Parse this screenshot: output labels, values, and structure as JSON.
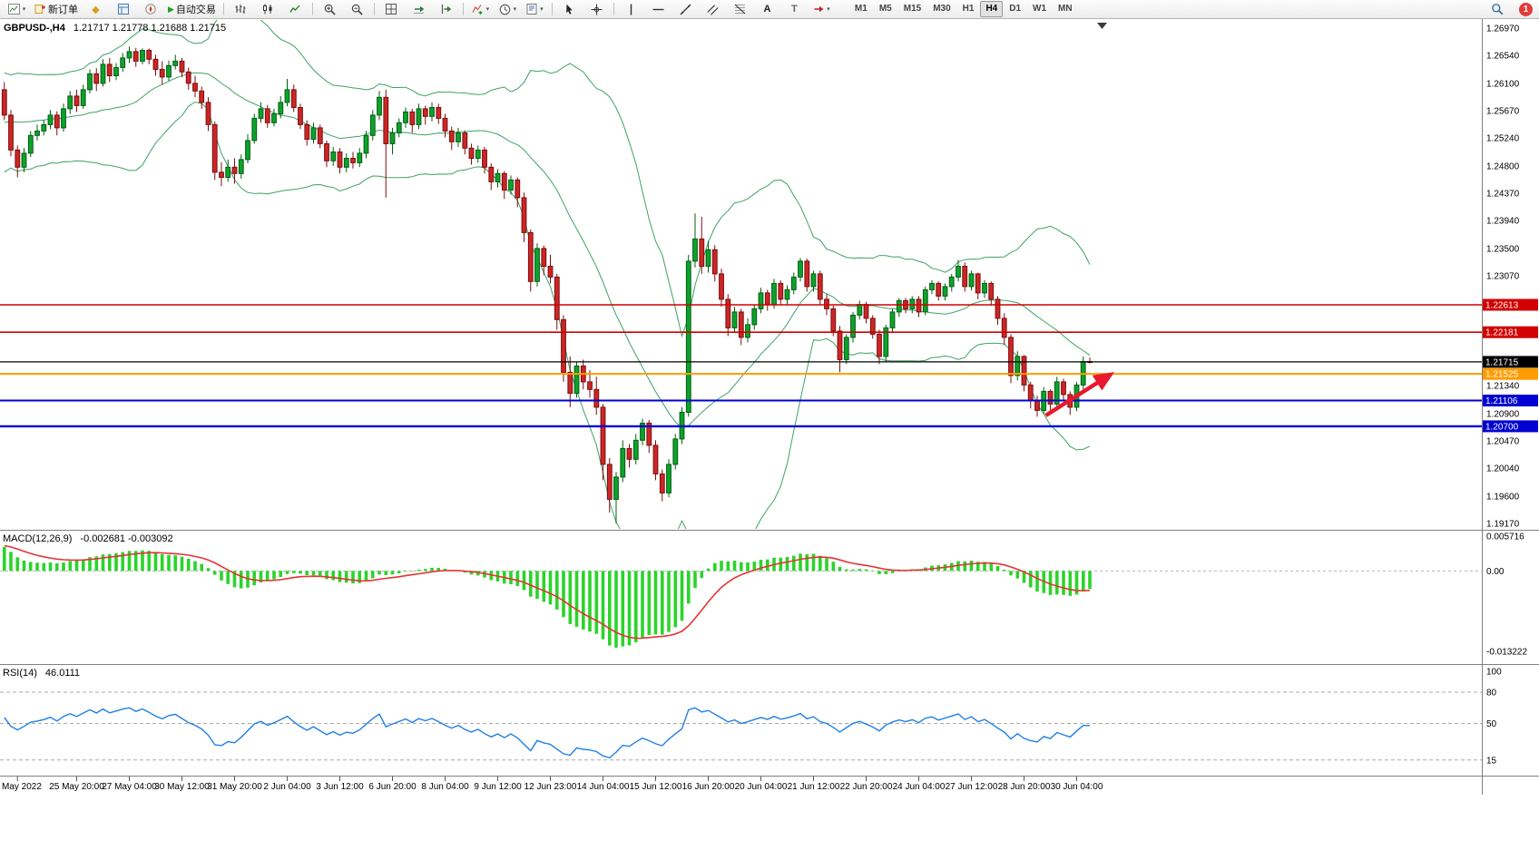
{
  "toolbar": {
    "items": [
      {
        "name": "new-chart",
        "dropdown": true
      },
      {
        "name": "new-order",
        "label": "新订单"
      },
      {
        "name": "metaeditor"
      },
      {
        "name": "market-watch"
      },
      {
        "name": "navigator"
      },
      {
        "name": "autotrading",
        "label": "自动交易"
      },
      {
        "sep": true
      },
      {
        "name": "bars-chart"
      },
      {
        "name": "candlestick-chart"
      },
      {
        "name": "line-chart"
      },
      {
        "sep": true
      },
      {
        "name": "zoom-in"
      },
      {
        "name": "zoom-out"
      },
      {
        "sep": true
      },
      {
        "name": "tile-windows"
      },
      {
        "name": "auto-scroll"
      },
      {
        "name": "chart-shift"
      },
      {
        "sep": true
      },
      {
        "name": "indicators",
        "dropdown": true
      },
      {
        "name": "periods",
        "dropdown": true
      },
      {
        "name": "templates",
        "dropdown": true
      },
      {
        "sep": true
      },
      {
        "name": "cursor"
      },
      {
        "name": "crosshair"
      },
      {
        "sep": true
      },
      {
        "name": "vertical-line"
      },
      {
        "name": "horizontal-line"
      },
      {
        "name": "trendline"
      },
      {
        "name": "equidistant-channel"
      },
      {
        "name": "fibonacci"
      },
      {
        "name": "text"
      },
      {
        "name": "text-label"
      },
      {
        "name": "arrows",
        "dropdown": true
      }
    ],
    "timeframes": [
      "M1",
      "M5",
      "M15",
      "M30",
      "H1",
      "H4",
      "D1",
      "W1",
      "MN"
    ],
    "active_timeframe": "H4",
    "notification_count": "1"
  },
  "chart_data": {
    "type": "candlestick",
    "symbol": "GBPUSD-",
    "period": "H4",
    "title": "GBPUSD-,H4",
    "ohlc_text": "1.21717 1.21778 1.21688 1.21715",
    "price_unit": 0.0001,
    "candles": [
      [
        12600,
        12612,
        12552,
        12560
      ],
      [
        12560,
        12568,
        12495,
        12505
      ],
      [
        12505,
        12512,
        12462,
        12478
      ],
      [
        12478,
        12508,
        12470,
        12500
      ],
      [
        12500,
        12535,
        12494,
        12528
      ],
      [
        12528,
        12545,
        12520,
        12535
      ],
      [
        12535,
        12552,
        12528,
        12545
      ],
      [
        12545,
        12568,
        12538,
        12560
      ],
      [
        12560,
        12566,
        12528,
        12540
      ],
      [
        12540,
        12578,
        12534,
        12570
      ],
      [
        12570,
        12598,
        12562,
        12590
      ],
      [
        12590,
        12600,
        12565,
        12575
      ],
      [
        12575,
        12608,
        12570,
        12600
      ],
      [
        12600,
        12632,
        12594,
        12625
      ],
      [
        12625,
        12634,
        12598,
        12610
      ],
      [
        12610,
        12648,
        12605,
        12640
      ],
      [
        12640,
        12650,
        12612,
        12622
      ],
      [
        12622,
        12642,
        12615,
        12635
      ],
      [
        12635,
        12658,
        12628,
        12650
      ],
      [
        12650,
        12668,
        12642,
        12660
      ],
      [
        12660,
        12666,
        12636,
        12645
      ],
      [
        12645,
        12665,
        12640,
        12662
      ],
      [
        12662,
        12665,
        12640,
        12648
      ],
      [
        12648,
        12655,
        12622,
        12632
      ],
      [
        12632,
        12645,
        12608,
        12620
      ],
      [
        12620,
        12646,
        12614,
        12638
      ],
      [
        12638,
        12655,
        12632,
        12645
      ],
      [
        12645,
        12650,
        12620,
        12628
      ],
      [
        12628,
        12635,
        12600,
        12610
      ],
      [
        12610,
        12622,
        12588,
        12598
      ],
      [
        12598,
        12605,
        12570,
        12580
      ],
      [
        12580,
        12588,
        12535,
        12545
      ],
      [
        12545,
        12550,
        12458,
        12470
      ],
      [
        12470,
        12486,
        12448,
        12462
      ],
      [
        12462,
        12490,
        12455,
        12478
      ],
      [
        12478,
        12492,
        12452,
        12468
      ],
      [
        12468,
        12498,
        12460,
        12490
      ],
      [
        12490,
        12530,
        12484,
        12520
      ],
      [
        12520,
        12562,
        12515,
        12555
      ],
      [
        12555,
        12580,
        12548,
        12570
      ],
      [
        12570,
        12576,
        12540,
        12548
      ],
      [
        12548,
        12570,
        12542,
        12562
      ],
      [
        12562,
        12590,
        12555,
        12580
      ],
      [
        12580,
        12617,
        12574,
        12600
      ],
      [
        12600,
        12608,
        12565,
        12572
      ],
      [
        12572,
        12578,
        12538,
        12545
      ],
      [
        12545,
        12552,
        12512,
        12522
      ],
      [
        12522,
        12548,
        12515,
        12540
      ],
      [
        12540,
        12545,
        12508,
        12515
      ],
      [
        12515,
        12520,
        12478,
        12488
      ],
      [
        12488,
        12510,
        12480,
        12502
      ],
      [
        12502,
        12508,
        12468,
        12478
      ],
      [
        12478,
        12500,
        12470,
        12492
      ],
      [
        12492,
        12502,
        12476,
        12485
      ],
      [
        12485,
        12508,
        12478,
        12500
      ],
      [
        12500,
        12535,
        12492,
        12528
      ],
      [
        12528,
        12568,
        12520,
        12560
      ],
      [
        12560,
        12598,
        12552,
        12588
      ],
      [
        12588,
        12600,
        12430,
        12515
      ],
      [
        12515,
        12540,
        12498,
        12532
      ],
      [
        12532,
        12555,
        12525,
        12548
      ],
      [
        12548,
        12572,
        12540,
        12565
      ],
      [
        12565,
        12570,
        12532,
        12545
      ],
      [
        12545,
        12578,
        12538,
        12570
      ],
      [
        12570,
        12575,
        12545,
        12558
      ],
      [
        12558,
        12580,
        12550,
        12572
      ],
      [
        12572,
        12578,
        12546,
        12555
      ],
      [
        12555,
        12562,
        12525,
        12535
      ],
      [
        12535,
        12542,
        12505,
        12518
      ],
      [
        12518,
        12540,
        12510,
        12532
      ],
      [
        12532,
        12536,
        12498,
        12508
      ],
      [
        12508,
        12515,
        12482,
        12492
      ],
      [
        12492,
        12512,
        12485,
        12505
      ],
      [
        12505,
        12510,
        12468,
        12478
      ],
      [
        12478,
        12484,
        12442,
        12455
      ],
      [
        12455,
        12475,
        12446,
        12468
      ],
      [
        12468,
        12472,
        12428,
        12442
      ],
      [
        12442,
        12465,
        12435,
        12458
      ],
      [
        12458,
        12462,
        12415,
        12430
      ],
      [
        12430,
        12438,
        12360,
        12375
      ],
      [
        12375,
        12380,
        12282,
        12298
      ],
      [
        12298,
        12358,
        12290,
        12350
      ],
      [
        12350,
        12355,
        12308,
        12322
      ],
      [
        12322,
        12340,
        12295,
        12305
      ],
      [
        12305,
        12310,
        12222,
        12238
      ],
      [
        12238,
        12245,
        12140,
        12155
      ],
      [
        12155,
        12180,
        12100,
        12122
      ],
      [
        12122,
        12172,
        12115,
        12165
      ],
      [
        12165,
        12175,
        12128,
        12140
      ],
      [
        12140,
        12158,
        12115,
        12128
      ],
      [
        12128,
        12148,
        12088,
        12100
      ],
      [
        12100,
        12105,
        11985,
        12010
      ],
      [
        12010,
        12020,
        11934,
        11955
      ],
      [
        11955,
        11998,
        11917,
        11990
      ],
      [
        11990,
        12048,
        11982,
        12035
      ],
      [
        12035,
        12042,
        12005,
        12018
      ],
      [
        12018,
        12058,
        12010,
        12048
      ],
      [
        12048,
        12082,
        12040,
        12075
      ],
      [
        12075,
        12080,
        12028,
        12040
      ],
      [
        12040,
        12048,
        11985,
        11995
      ],
      [
        11995,
        12002,
        11952,
        11965
      ],
      [
        11965,
        12018,
        11958,
        12010
      ],
      [
        12010,
        12058,
        12002,
        12050
      ],
      [
        12050,
        12100,
        12042,
        12092
      ],
      [
        12092,
        12340,
        12085,
        12330
      ],
      [
        12330,
        12405,
        12320,
        12365
      ],
      [
        12365,
        12400,
        12310,
        12322
      ],
      [
        12322,
        12362,
        12312,
        12348
      ],
      [
        12348,
        12355,
        12298,
        12310
      ],
      [
        12310,
        12318,
        12258,
        12270
      ],
      [
        12270,
        12278,
        12212,
        12225
      ],
      [
        12225,
        12258,
        12218,
        12250
      ],
      [
        12250,
        12255,
        12198,
        12210
      ],
      [
        12210,
        12240,
        12202,
        12230
      ],
      [
        12230,
        12262,
        12222,
        12255
      ],
      [
        12255,
        12288,
        12248,
        12280
      ],
      [
        12280,
        12285,
        12252,
        12262
      ],
      [
        12262,
        12302,
        12255,
        12295
      ],
      [
        12295,
        12300,
        12262,
        12270
      ],
      [
        12270,
        12292,
        12262,
        12285
      ],
      [
        12285,
        12312,
        12278,
        12305
      ],
      [
        12305,
        12335,
        12298,
        12330
      ],
      [
        12330,
        12334,
        12282,
        12290
      ],
      [
        12290,
        12315,
        12282,
        12310
      ],
      [
        12310,
        12315,
        12262,
        12270
      ],
      [
        12270,
        12278,
        12245,
        12255
      ],
      [
        12255,
        12260,
        12212,
        12220
      ],
      [
        12220,
        12228,
        12155,
        12175
      ],
      [
        12175,
        12215,
        12168,
        12210
      ],
      [
        12210,
        12250,
        12202,
        12245
      ],
      [
        12245,
        12268,
        12238,
        12262
      ],
      [
        12262,
        12266,
        12232,
        12240
      ],
      [
        12240,
        12245,
        12208,
        12215
      ],
      [
        12215,
        12222,
        12168,
        12180
      ],
      [
        12180,
        12230,
        12172,
        12225
      ],
      [
        12225,
        12255,
        12218,
        12250
      ],
      [
        12250,
        12272,
        12242,
        12268
      ],
      [
        12268,
        12272,
        12248,
        12255
      ],
      [
        12255,
        12275,
        12248,
        12270
      ],
      [
        12270,
        12275,
        12242,
        12250
      ],
      [
        12250,
        12290,
        12245,
        12285
      ],
      [
        12285,
        12300,
        12278,
        12295
      ],
      [
        12295,
        12298,
        12268,
        12275
      ],
      [
        12275,
        12295,
        12268,
        12290
      ],
      [
        12290,
        12310,
        12282,
        12305
      ],
      [
        12305,
        12332,
        12298,
        12322
      ],
      [
        12322,
        12328,
        12282,
        12290
      ],
      [
        12290,
        12315,
        12284,
        12310
      ],
      [
        12310,
        12312,
        12270,
        12280
      ],
      [
        12280,
        12300,
        12272,
        12295
      ],
      [
        12295,
        12298,
        12260,
        12270
      ],
      [
        12270,
        12275,
        12230,
        12240
      ],
      [
        12240,
        12248,
        12198,
        12210
      ],
      [
        12210,
        12215,
        12138,
        12150
      ],
      [
        12150,
        12188,
        12142,
        12180
      ],
      [
        12180,
        12182,
        12125,
        12135
      ],
      [
        12135,
        12140,
        12098,
        12110
      ],
      [
        12110,
        12118,
        12085,
        12095
      ],
      [
        12095,
        12132,
        12090,
        12125
      ],
      [
        12125,
        12128,
        12095,
        12105
      ],
      [
        12105,
        12148,
        12100,
        12140
      ],
      [
        12140,
        12145,
        12110,
        12120
      ],
      [
        12120,
        12125,
        12088,
        12100
      ],
      [
        12100,
        12140,
        12094,
        12135
      ],
      [
        12135,
        12180,
        12128,
        12172
      ],
      [
        12172,
        12178,
        12169,
        12171
      ]
    ],
    "price_axis": {
      "labels": [
        "1.26970",
        "1.26540",
        "1.26100",
        "1.25670",
        "1.25240",
        "1.24800",
        "1.24370",
        "1.23940",
        "1.23500",
        "1.23070",
        "1.21340",
        "1.20900",
        "1.20470",
        "1.20040",
        "1.19600",
        "1.19170"
      ]
    },
    "time_axis": {
      "labels": [
        {
          "text": "May 2022",
          "bar": 2
        },
        {
          "text": "25 May 20:00",
          "bar": 11
        },
        {
          "text": "27 May 04:00",
          "bar": 19
        },
        {
          "text": "30 May 12:00",
          "bar": 27
        },
        {
          "text": "31 May 20:00",
          "bar": 35
        },
        {
          "text": "2 Jun 04:00",
          "bar": 43
        },
        {
          "text": "3 Jun 12:00",
          "bar": 51
        },
        {
          "text": "6 Jun 20:00",
          "bar": 59
        },
        {
          "text": "8 Jun 04:00",
          "bar": 67
        },
        {
          "text": "9 Jun 12:00",
          "bar": 75
        },
        {
          "text": "12 Jun 23:00",
          "bar": 83
        },
        {
          "text": "14 Jun 04:00",
          "bar": 91
        },
        {
          "text": "15 Jun 12:00",
          "bar": 99
        },
        {
          "text": "16 Jun 20:00",
          "bar": 107
        },
        {
          "text": "20 Jun 04:00",
          "bar": 115
        },
        {
          "text": "21 Jun 12:00",
          "bar": 123
        },
        {
          "text": "22 Jun 20:00",
          "bar": 131
        },
        {
          "text": "24 Jun 04:00",
          "bar": 139
        },
        {
          "text": "27 Jun 12:00",
          "bar": 147
        },
        {
          "text": "28 Jun 20:00",
          "bar": 155
        },
        {
          "text": "30 Jun 04:00",
          "bar": 163
        }
      ]
    },
    "horizontal_lines": [
      {
        "price": 1.22613,
        "label": "1.22613",
        "color": "#d20000",
        "width": 1.6
      },
      {
        "price": 1.22181,
        "label": "1.22181",
        "color": "#d20000",
        "width": 1.6
      },
      {
        "price": 1.21525,
        "label": "1.21525",
        "color": "#ff9c00",
        "width": 2
      },
      {
        "price": 1.21106,
        "label": "1.21106",
        "color": "#0000d2",
        "width": 2
      },
      {
        "price": 1.207,
        "label": "1.20700",
        "color": "#0000d2",
        "width": 2.4
      }
    ],
    "bid_line": {
      "price": 1.21715,
      "label": "1.21715",
      "color": "#000000"
    },
    "arrow_annotation": {
      "from_bar": 158.3,
      "from_price": 1.2087,
      "to_bar": 168.2,
      "to_price": 1.2152,
      "color": "#e8192c"
    },
    "indicators": {
      "macd": {
        "name": "MACD(12,26,9)",
        "values": "-0.002681 -0.003092",
        "params": {
          "fast": 12,
          "slow": 26,
          "signal": 9
        },
        "scale_labels": [
          {
            "text": "0.005716",
            "value": 0.005716
          },
          {
            "text": "0.00",
            "value": 0
          },
          {
            "text": "-0.013222",
            "value": -0.013222
          }
        ],
        "histogram_color": "#2bd42b",
        "signal_color": "#e53434"
      },
      "rsi": {
        "name": "RSI(14)",
        "value": "46.0111",
        "period": 14,
        "levels": [
          80,
          50,
          15
        ],
        "scale_labels": [
          {
            "text": "100",
            "value": 100
          },
          {
            "text": "80",
            "value": 80
          },
          {
            "text": "50",
            "value": 50
          },
          {
            "text": "15",
            "value": 15
          }
        ],
        "line_color": "#1f7fe8"
      }
    },
    "bollinger_color": "#3da266",
    "bull_color": "#0ca32a",
    "bear_color": "#cd2626"
  }
}
